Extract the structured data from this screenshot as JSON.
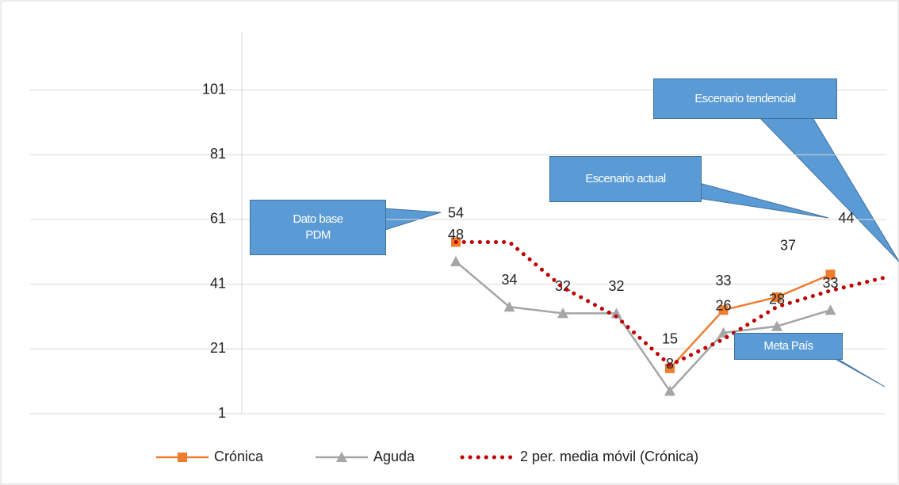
{
  "chart_data": {
    "type": "line",
    "categories": [
      null,
      null,
      null,
      null,
      null,
      null,
      null,
      null,
      null,
      null,
      null,
      null,
      null
    ],
    "series": [
      {
        "name": "Crónica",
        "color": "#ed7d31",
        "marker": "square",
        "values": [
          null,
          null,
          null,
          null,
          54,
          null,
          null,
          null,
          15,
          33,
          37,
          44,
          null
        ]
      },
      {
        "name": "Aguda",
        "color": "#a5a5a5",
        "marker": "triangle",
        "values": [
          null,
          null,
          null,
          null,
          48,
          34,
          32,
          32,
          8,
          26,
          28,
          33,
          null
        ]
      },
      {
        "name": "2 per. media móvil (Crónica)",
        "color": "#c00000",
        "dash": "dotted",
        "values": [
          null,
          null,
          null,
          null,
          54,
          54,
          40,
          31,
          16,
          24,
          34,
          39,
          43
        ]
      }
    ],
    "ylim": [
      1,
      119
    ],
    "yticks": [
      1,
      21,
      41,
      61,
      81,
      101
    ],
    "grid": true,
    "annotations": [
      "Dato base PDM",
      "Escenario actual",
      "Escenario tendencial",
      "Meta País"
    ]
  }
}
